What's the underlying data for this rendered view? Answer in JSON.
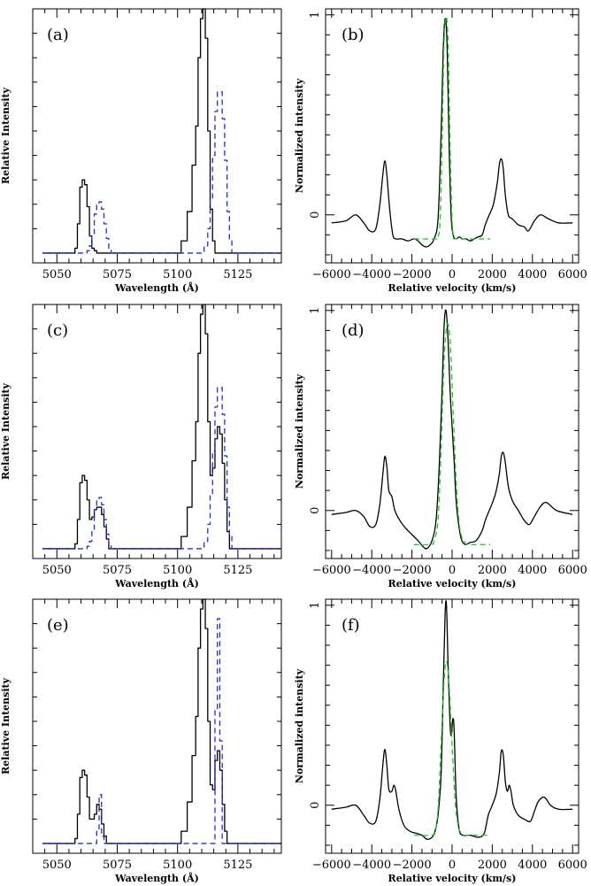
{
  "colors": {
    "black": "#000000",
    "blue": "#1f2fd6",
    "green": "#19cc19"
  },
  "chart_data": [
    {
      "id": "a",
      "type": "line",
      "panel_label": "(a)",
      "xlabel": "Wavelength (Å)",
      "ylabel": "Relative Intensity",
      "xlim": [
        5040,
        5143
      ],
      "ylim": [
        -0.04,
        1.0
      ],
      "xticks": [
        5050,
        5075,
        5100,
        5125
      ],
      "xtick_labels": [
        "5050",
        "5075",
        "5100",
        "5125"
      ],
      "series": [
        {
          "style": "histogram",
          "color": "black",
          "dashed": false,
          "x": [
            5044,
            5057,
            5058,
            5059,
            5060,
            5061,
            5062,
            5063,
            5064,
            5065,
            5066,
            5067,
            5100,
            5103,
            5105,
            5107,
            5108,
            5109,
            5110,
            5111,
            5112,
            5113,
            5114,
            5115,
            5116,
            5143
          ],
          "y": [
            0,
            0,
            0.02,
            0.12,
            0.27,
            0.3,
            0.28,
            0.19,
            0.07,
            0.02,
            0.01,
            0,
            0,
            0.05,
            0.17,
            0.36,
            0.52,
            0.8,
            0.96,
            1.0,
            0.88,
            0.5,
            0.18,
            0.05,
            0,
            0
          ]
        },
        {
          "style": "histogram",
          "color": "blue",
          "dashed": true,
          "x": [
            5044,
            5062,
            5063,
            5064,
            5065,
            5066,
            5067,
            5068,
            5069,
            5070,
            5071,
            5072,
            5073,
            5110,
            5112,
            5113,
            5114,
            5115,
            5116,
            5117,
            5118,
            5119,
            5120,
            5121,
            5122,
            5123,
            5143
          ],
          "y": [
            0,
            0,
            0.01,
            0.03,
            0.08,
            0.16,
            0.2,
            0.21,
            0.18,
            0.12,
            0.06,
            0.02,
            0,
            0,
            0.03,
            0.1,
            0.22,
            0.4,
            0.58,
            0.66,
            0.66,
            0.55,
            0.38,
            0.17,
            0.05,
            0,
            0
          ]
        }
      ]
    },
    {
      "id": "b",
      "type": "line",
      "panel_label": "(b)",
      "xlabel": "Relative velocity (km/s)",
      "ylabel": "Normalized intensity",
      "xlim": [
        -6300,
        6300
      ],
      "ylim": [
        -0.24,
        1.03
      ],
      "xticks": [
        -6000,
        -4000,
        -2000,
        0,
        2000,
        4000,
        6000
      ],
      "xtick_labels": [
        "−6000",
        "−4000",
        "−2000",
        "0",
        "2000",
        "4000",
        "6000"
      ],
      "yticks": [
        0,
        1
      ],
      "ytick_labels": [
        "0",
        "1"
      ],
      "series": [
        {
          "style": "line",
          "color": "black",
          "dashed": false,
          "x": [
            -6000,
            -5300,
            -4800,
            -4400,
            -4100,
            -3800,
            -3600,
            -3450,
            -3350,
            -3250,
            -3100,
            -2950,
            -2800,
            -2500,
            -2200,
            -1900,
            -1700,
            -1500,
            -1300,
            -1100,
            -900,
            -700,
            -550,
            -450,
            -350,
            -250,
            -150,
            -50,
            50,
            200,
            350,
            500,
            700,
            900,
            1100,
            1300,
            1500,
            1650,
            1850,
            2050,
            2250,
            2350,
            2450,
            2550,
            2650,
            2800,
            3000,
            3300,
            3600,
            3800,
            4100,
            4400,
            4800,
            5300,
            6000
          ],
          "y": [
            -0.04,
            -0.03,
            0.0,
            -0.04,
            -0.08,
            -0.07,
            0.05,
            0.2,
            0.27,
            0.2,
            0.02,
            -0.1,
            -0.12,
            -0.12,
            -0.13,
            -0.12,
            -0.13,
            -0.15,
            -0.16,
            -0.15,
            -0.12,
            -0.02,
            0.4,
            0.8,
            0.98,
            0.85,
            0.35,
            0.0,
            -0.1,
            -0.12,
            -0.11,
            -0.12,
            -0.12,
            -0.13,
            -0.12,
            -0.11,
            -0.1,
            -0.05,
            0.0,
            0.05,
            0.16,
            0.25,
            0.28,
            0.23,
            0.1,
            0.0,
            -0.02,
            -0.05,
            -0.06,
            -0.08,
            -0.03,
            0.0,
            -0.02,
            -0.04,
            -0.04
          ]
        },
        {
          "style": "line",
          "color": "green",
          "dashed": true,
          "x": [
            -1900,
            -800,
            -700,
            -600,
            -500,
            -400,
            -300,
            -200,
            -100,
            0,
            100,
            200,
            1900
          ],
          "y": [
            -0.12,
            -0.12,
            -0.11,
            -0.03,
            0.35,
            0.86,
            0.99,
            0.86,
            0.35,
            -0.03,
            -0.11,
            -0.12,
            -0.12
          ]
        }
      ]
    },
    {
      "id": "c",
      "type": "line",
      "panel_label": "(c)",
      "xlabel": "Wavelength (Å)",
      "ylabel": "Relative Intensity",
      "xlim": [
        5040,
        5143
      ],
      "ylim": [
        -0.04,
        1.0
      ],
      "xticks": [
        5050,
        5075,
        5100,
        5125
      ],
      "xtick_labels": [
        "5050",
        "5075",
        "5100",
        "5125"
      ],
      "series": [
        {
          "style": "histogram",
          "color": "black",
          "dashed": false,
          "x": [
            5044,
            5057,
            5058,
            5059,
            5060,
            5061,
            5062,
            5063,
            5064,
            5065,
            5066,
            5067,
            5068,
            5069,
            5070,
            5071,
            5072,
            5100,
            5103,
            5105,
            5107,
            5108,
            5109,
            5110,
            5111,
            5112,
            5113,
            5114,
            5115,
            5116,
            5117,
            5118,
            5119,
            5120,
            5121,
            5122,
            5143
          ],
          "y": [
            0,
            0,
            0.02,
            0.12,
            0.27,
            0.3,
            0.28,
            0.2,
            0.12,
            0.13,
            0.16,
            0.17,
            0.17,
            0.14,
            0.09,
            0.04,
            0,
            0,
            0.05,
            0.17,
            0.36,
            0.52,
            0.8,
            0.96,
            1.0,
            0.88,
            0.52,
            0.3,
            0.33,
            0.45,
            0.5,
            0.47,
            0.35,
            0.2,
            0.07,
            0,
            0
          ]
        },
        {
          "style": "histogram",
          "color": "blue",
          "dashed": true,
          "x": [
            5044,
            5062,
            5063,
            5064,
            5065,
            5066,
            5067,
            5068,
            5069,
            5070,
            5071,
            5072,
            5073,
            5110,
            5112,
            5113,
            5114,
            5115,
            5116,
            5117,
            5118,
            5119,
            5120,
            5121,
            5122,
            5123,
            5143
          ],
          "y": [
            0,
            0,
            0.01,
            0.03,
            0.08,
            0.16,
            0.2,
            0.21,
            0.18,
            0.12,
            0.06,
            0.02,
            0,
            0,
            0.03,
            0.1,
            0.22,
            0.4,
            0.58,
            0.66,
            0.66,
            0.55,
            0.38,
            0.17,
            0.05,
            0,
            0
          ]
        }
      ]
    },
    {
      "id": "d",
      "type": "line",
      "panel_label": "(d)",
      "xlabel": "Relative velocity (km/s)",
      "ylabel": "Normalized intensity",
      "xlim": [
        -6300,
        6300
      ],
      "ylim": [
        -0.24,
        1.03
      ],
      "xticks": [
        -6000,
        -4000,
        -2000,
        0,
        2000,
        4000,
        6000
      ],
      "xtick_labels": [
        "−6000",
        "−4000",
        "−2000",
        "0",
        "2000",
        "4000",
        "6000"
      ],
      "yticks": [
        0,
        1
      ],
      "ytick_labels": [
        "0",
        "1"
      ],
      "series": [
        {
          "style": "line",
          "color": "black",
          "dashed": false,
          "x": [
            -6000,
            -5300,
            -4800,
            -4400,
            -4100,
            -3800,
            -3600,
            -3450,
            -3350,
            -3250,
            -3150,
            -3000,
            -2850,
            -2600,
            -2300,
            -2000,
            -1700,
            -1450,
            -1250,
            -1000,
            -800,
            -650,
            -500,
            -400,
            -300,
            -200,
            -100,
            0,
            100,
            200,
            300,
            450,
            650,
            900,
            1200,
            1500,
            1650,
            1850,
            2050,
            2200,
            2350,
            2450,
            2550,
            2650,
            2800,
            3000,
            3300,
            3600,
            3850,
            4100,
            4400,
            4700,
            5200,
            6000
          ],
          "y": [
            -0.02,
            -0.01,
            0.0,
            -0.03,
            -0.08,
            -0.07,
            0.03,
            0.18,
            0.27,
            0.22,
            0.1,
            0.07,
            0.0,
            -0.05,
            -0.09,
            -0.12,
            -0.15,
            -0.18,
            -0.19,
            -0.15,
            -0.05,
            0.2,
            0.6,
            0.92,
            1.0,
            0.85,
            0.6,
            0.42,
            0.25,
            0.05,
            -0.05,
            -0.14,
            -0.17,
            -0.16,
            -0.15,
            -0.1,
            -0.05,
            0.0,
            0.05,
            0.1,
            0.18,
            0.27,
            0.29,
            0.24,
            0.12,
            0.05,
            0.0,
            -0.05,
            -0.07,
            -0.03,
            0.02,
            0.04,
            0.0,
            -0.02
          ]
        },
        {
          "style": "line",
          "color": "green",
          "dashed": true,
          "x": [
            -1900,
            -1050,
            -900,
            -700,
            -550,
            -400,
            -250,
            -100,
            50,
            200,
            350,
            500,
            650,
            800,
            1900
          ],
          "y": [
            -0.17,
            -0.17,
            -0.15,
            -0.05,
            0.3,
            0.75,
            0.93,
            0.85,
            0.5,
            0.15,
            -0.06,
            -0.14,
            -0.16,
            -0.17,
            -0.17
          ]
        }
      ]
    },
    {
      "id": "e",
      "type": "line",
      "panel_label": "(e)",
      "xlabel": "Wavelength (Å)",
      "ylabel": "Relative Intensity",
      "xlim": [
        5040,
        5143
      ],
      "ylim": [
        -0.04,
        1.0
      ],
      "xticks": [
        5050,
        5075,
        5100,
        5125
      ],
      "xtick_labels": [
        "5050",
        "5075",
        "5100",
        "5125"
      ],
      "series": [
        {
          "style": "histogram",
          "color": "black",
          "dashed": false,
          "x": [
            5044,
            5057,
            5058,
            5059,
            5060,
            5061,
            5062,
            5063,
            5064,
            5065,
            5066,
            5067,
            5068,
            5069,
            5070,
            5071,
            5100,
            5103,
            5105,
            5107,
            5108,
            5109,
            5110,
            5111,
            5112,
            5113,
            5114,
            5115,
            5116,
            5117,
            5118,
            5119,
            5120,
            5121,
            5143
          ],
          "y": [
            0,
            0,
            0.02,
            0.12,
            0.27,
            0.3,
            0.28,
            0.19,
            0.1,
            0.1,
            0.12,
            0.16,
            0.14,
            0.08,
            0.03,
            0,
            0,
            0.05,
            0.17,
            0.36,
            0.52,
            0.8,
            0.96,
            1.0,
            0.88,
            0.5,
            0.24,
            0.22,
            0.34,
            0.38,
            0.3,
            0.16,
            0.05,
            0,
            0
          ]
        },
        {
          "style": "histogram",
          "color": "blue",
          "dashed": true,
          "x": [
            5044,
            5066,
            5067,
            5068,
            5069,
            5070,
            5115,
            5116,
            5117,
            5118,
            5119,
            5143
          ],
          "y": [
            0,
            0,
            0.05,
            0.2,
            0.03,
            0,
            0,
            0.55,
            0.92,
            0.42,
            0,
            0
          ]
        }
      ]
    },
    {
      "id": "f",
      "type": "line",
      "panel_label": "(f)",
      "xlabel": "Relative velocity (km/s)",
      "ylabel": "Normalized intensity",
      "xlim": [
        -6300,
        6300
      ],
      "ylim": [
        -0.24,
        1.03
      ],
      "xticks": [
        -6000,
        -4000,
        -2000,
        0,
        2000,
        4000,
        6000
      ],
      "xtick_labels": [
        "−6000",
        "−4000",
        "−2000",
        "0",
        "2000",
        "4000",
        "6000"
      ],
      "yticks": [
        0,
        1
      ],
      "ytick_labels": [
        "0",
        "1"
      ],
      "series": [
        {
          "style": "line",
          "color": "black",
          "dashed": false,
          "x": [
            -6000,
            -5300,
            -4800,
            -4400,
            -4100,
            -3800,
            -3600,
            -3450,
            -3350,
            -3250,
            -3150,
            -3000,
            -2900,
            -2800,
            -2650,
            -2400,
            -2100,
            -1800,
            -1500,
            -1250,
            -1000,
            -850,
            -700,
            -550,
            -450,
            -350,
            -280,
            -200,
            -100,
            -30,
            30,
            100,
            200,
            350,
            550,
            900,
            1300,
            1600,
            1800,
            2000,
            2200,
            2350,
            2450,
            2550,
            2650,
            2750,
            2850,
            2950,
            3050,
            3300,
            3600,
            3900,
            4100,
            4300,
            4600,
            4900,
            5300,
            6000
          ],
          "y": [
            -0.02,
            -0.01,
            0.0,
            -0.05,
            -0.09,
            -0.08,
            0.03,
            0.2,
            0.28,
            0.2,
            0.08,
            0.07,
            0.1,
            0.07,
            -0.02,
            -0.1,
            -0.13,
            -0.14,
            -0.15,
            -0.17,
            -0.16,
            -0.13,
            -0.05,
            0.15,
            0.55,
            0.95,
            1.0,
            0.7,
            0.4,
            0.35,
            0.43,
            0.38,
            0.05,
            -0.12,
            -0.15,
            -0.15,
            -0.16,
            -0.14,
            -0.05,
            0.0,
            0.06,
            0.16,
            0.27,
            0.25,
            0.12,
            0.07,
            0.1,
            0.06,
            0.0,
            -0.05,
            -0.07,
            -0.08,
            -0.03,
            0.02,
            0.04,
            0.0,
            -0.02,
            -0.02
          ]
        },
        {
          "style": "line",
          "color": "green",
          "dashed": true,
          "x": [
            -1900,
            -1000,
            -850,
            -700,
            -550,
            -400,
            -280,
            -150,
            0,
            150,
            300,
            450,
            600,
            750,
            1900
          ],
          "y": [
            -0.15,
            -0.15,
            -0.13,
            -0.02,
            0.3,
            0.62,
            0.72,
            0.6,
            0.3,
            0.02,
            -0.1,
            -0.14,
            -0.15,
            -0.15,
            -0.15
          ]
        }
      ]
    }
  ]
}
